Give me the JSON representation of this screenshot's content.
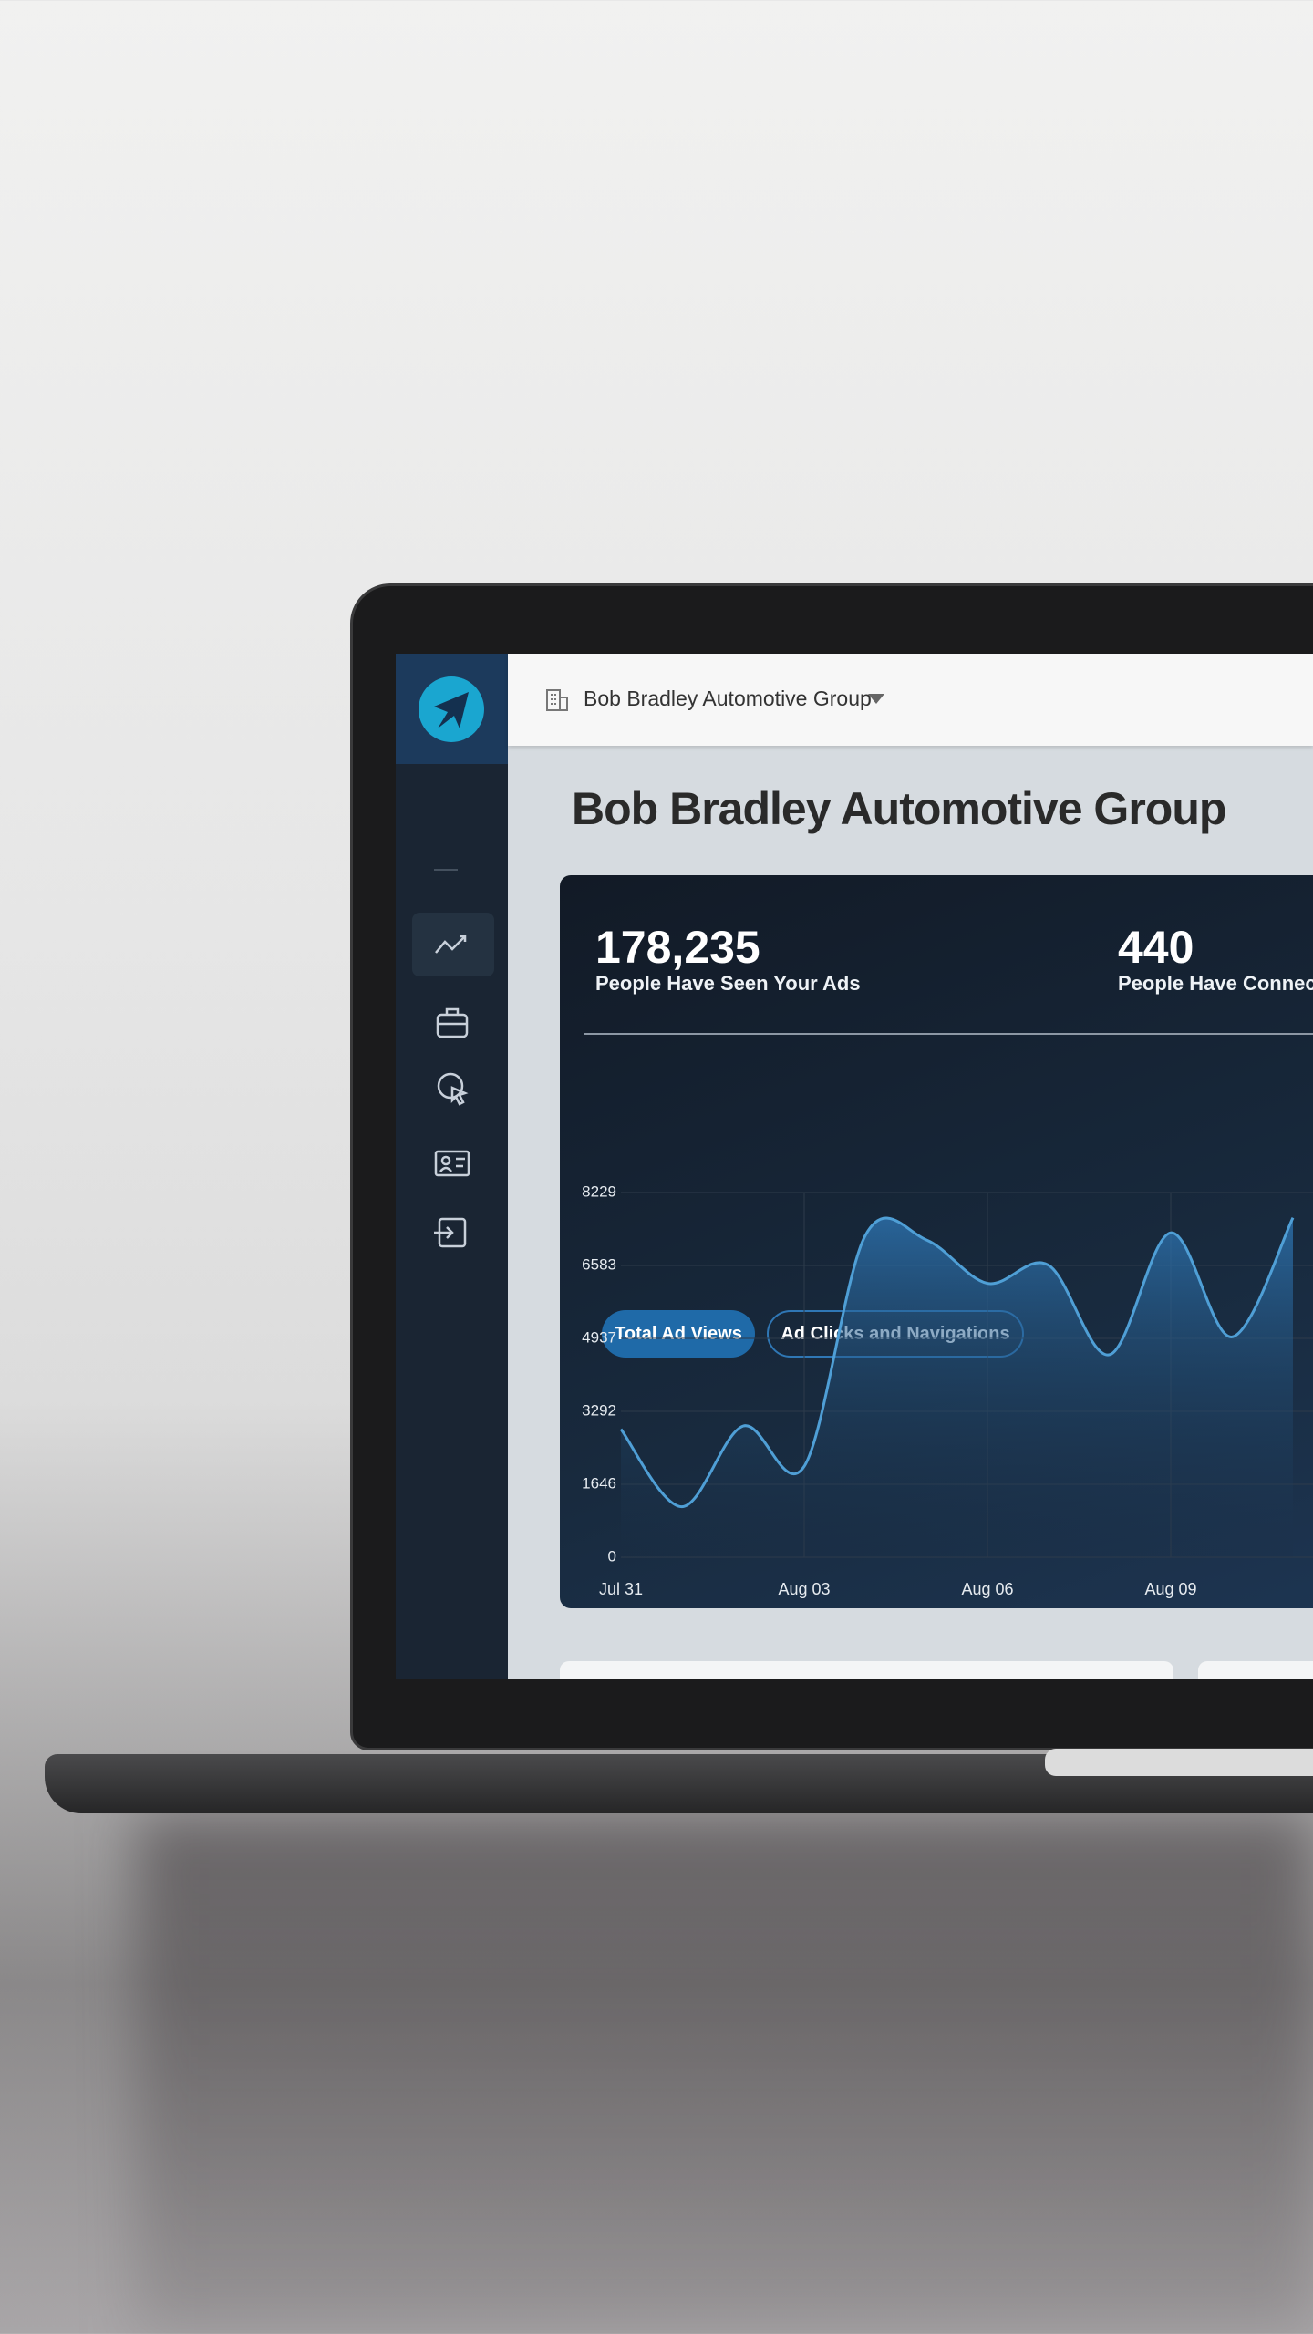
{
  "header": {
    "org_name": "Bob Bradley Automotive Group"
  },
  "page": {
    "title": "Bob Bradley Automotive Group"
  },
  "stats": [
    {
      "value": "178,235",
      "label": "People Have Seen Your Ads"
    },
    {
      "value": "440",
      "label": "People Have Connec"
    }
  ],
  "tabs": [
    "Total Ad Views",
    "Ad Clicks and Navigations"
  ],
  "chart_data": {
    "type": "area",
    "categories": [
      "Jul 31",
      null,
      null,
      "Aug 03",
      null,
      null,
      "Aug 06",
      null,
      null,
      "Aug 09",
      null,
      null
    ],
    "values": [
      2890,
      1140,
      2960,
      2050,
      7260,
      7160,
      6180,
      6590,
      4570,
      7320,
      4970,
      7660
    ],
    "color": "#4f9fd6",
    "ylim": [
      0,
      8229
    ],
    "yticks": [
      0,
      1646,
      3292,
      4937,
      6583,
      8229
    ],
    "grid": true
  }
}
